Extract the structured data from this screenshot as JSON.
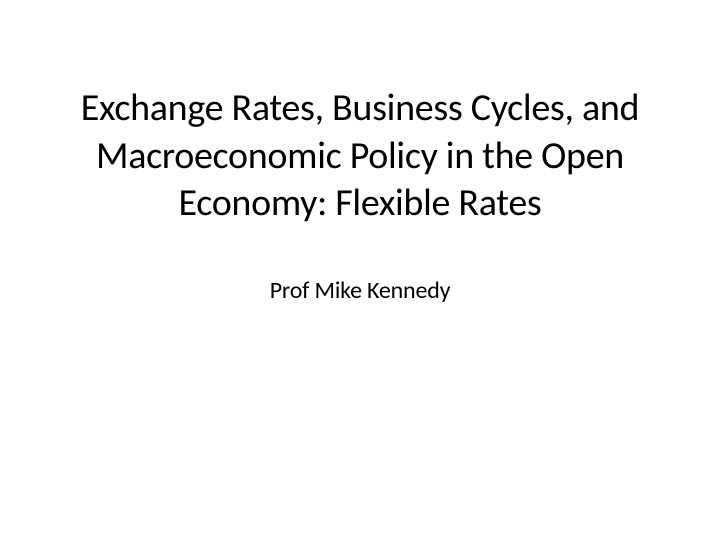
{
  "slide": {
    "title": "Exchange Rates, Business Cycles, and Macroeconomic Policy in the Open Economy: Flexible Rates",
    "subtitle": "Prof Mike Kennedy",
    "background_color": "#ffffff",
    "title_color": "#000000",
    "title_fontsize": 38,
    "subtitle_color": "#000000",
    "subtitle_fontsize": 24,
    "font_family": "Calibri"
  }
}
